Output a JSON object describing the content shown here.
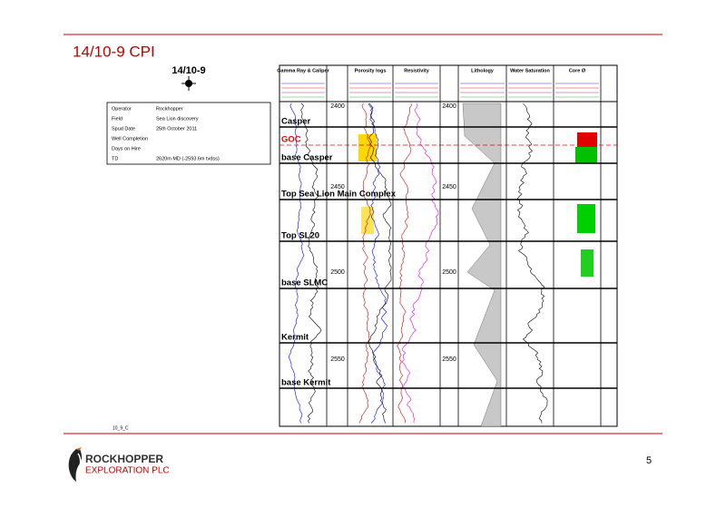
{
  "header": {
    "title": "14/10-9 CPI"
  },
  "well": {
    "name": "14/10-9"
  },
  "info": {
    "rows": [
      [
        "Operator",
        "Rockhopper"
      ],
      [
        "Field",
        "Sea Lion discovery"
      ],
      [
        "Spud Date",
        "25th October 2011"
      ],
      [
        "Well Completion",
        ""
      ],
      [
        "Days on Hire",
        ""
      ],
      [
        "TD",
        "2620m MD (-2593.6m tvdss)"
      ]
    ]
  },
  "log": {
    "tracks": [
      "Gamma Ray & Caliper",
      "Porosity logs",
      "Resistivity",
      "Lithology",
      "Water Saturation",
      "Core Ø"
    ],
    "depths": [
      "2400",
      "2450",
      "2500",
      "2550"
    ],
    "zones": [
      "Casper",
      "GOC",
      "base Casper",
      "Top Sea Lion Main Complex",
      "Top SL20",
      "base SLMC",
      "Kermit",
      "base Kermit"
    ]
  },
  "footer": {
    "code": "10_9_C",
    "company": "ROCKHOPPER",
    "company_sub": "EXPLORATION PLC",
    "page": "5"
  }
}
